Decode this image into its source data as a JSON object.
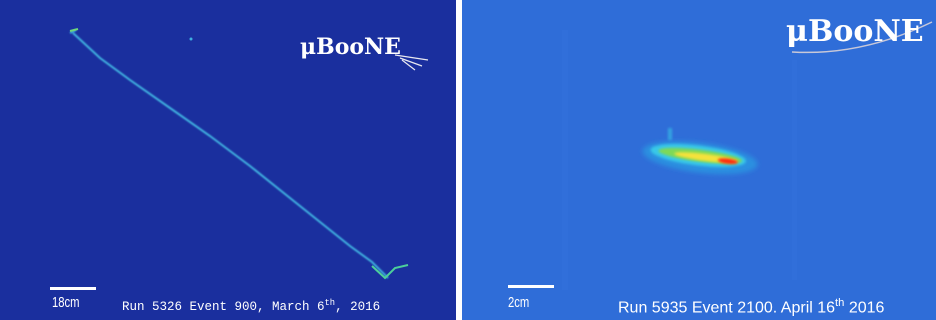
{
  "left_panel": {
    "logo_text": "μBooNE",
    "scale_label": "18cm",
    "caption": {
      "prefix": "Run 5326 Event 900, March 6",
      "ordinal": "th",
      "suffix": ", 2016"
    },
    "background_color": "#1a2f9e",
    "track_color": "#3fb0e0"
  },
  "right_panel": {
    "logo_text": "μBooNE",
    "scale_label": "2cm",
    "caption": {
      "prefix": "Run 5935 Event 2100. April 16",
      "ordinal": "th",
      "suffix": " 2016"
    },
    "background_color": "#2e6bd6",
    "hot_colors": [
      "#39c7e8",
      "#7ed957",
      "#f5e23a",
      "#ff2a10"
    ]
  }
}
